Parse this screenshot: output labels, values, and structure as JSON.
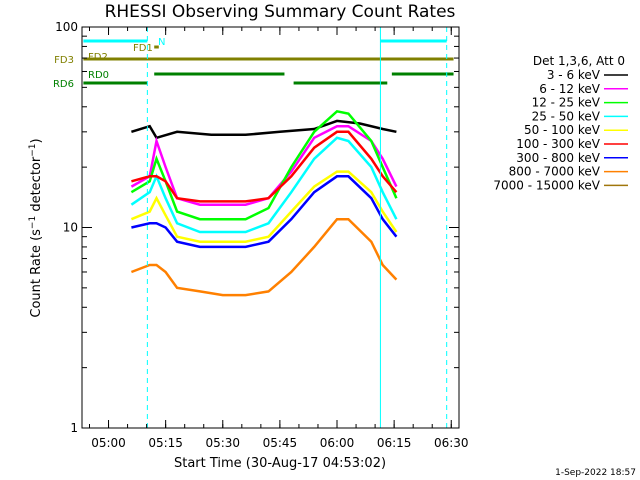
{
  "chart_data": {
    "type": "line",
    "title": "RHESSI Observing Summary Count Rates",
    "xlabel": "Start Time (30-Aug-17 04:53:02)",
    "ylabel_main": "Count Rate (s",
    "ylabel_sup": "−1",
    "ylabel_mid": " detector",
    "ylabel_end": ")",
    "x_range_min": [
      4.8839,
      6.5339
    ],
    "ylim": [
      1,
      100
    ],
    "y_scale": "log",
    "x_ticks": [
      {
        "t": 5.0,
        "label": "05:00"
      },
      {
        "t": 5.25,
        "label": "05:15"
      },
      {
        "t": 5.5,
        "label": "05:30"
      },
      {
        "t": 5.75,
        "label": "05:45"
      },
      {
        "t": 6.0,
        "label": "06:00"
      },
      {
        "t": 6.25,
        "label": "06:15"
      },
      {
        "t": 6.5,
        "label": "06:30"
      }
    ],
    "y_ticks": [
      {
        "v": 1,
        "label": "1"
      },
      {
        "v": 10,
        "label": "10"
      },
      {
        "v": 100,
        "label": "100"
      }
    ],
    "legend_header": "Det 1,3,6, Att 0",
    "legend_placement": "right",
    "series": [
      {
        "name": "3 - 6 keV",
        "color": "#000000",
        "points": [
          [
            5.1,
            30
          ],
          [
            5.18,
            32
          ],
          [
            5.21,
            28
          ],
          [
            5.3,
            30
          ],
          [
            5.45,
            29
          ],
          [
            5.6,
            29
          ],
          [
            5.75,
            30
          ],
          [
            5.9,
            31
          ],
          [
            6.0,
            34
          ],
          [
            6.1,
            33
          ],
          [
            6.2,
            31
          ],
          [
            6.26,
            30
          ]
        ]
      },
      {
        "name": "6 - 12 keV",
        "color": "#ff00ff",
        "points": [
          [
            5.1,
            16
          ],
          [
            5.18,
            18
          ],
          [
            5.21,
            27
          ],
          [
            5.25,
            20
          ],
          [
            5.3,
            14
          ],
          [
            5.4,
            13
          ],
          [
            5.5,
            13
          ],
          [
            5.6,
            13
          ],
          [
            5.7,
            14
          ],
          [
            5.8,
            19
          ],
          [
            5.9,
            28
          ],
          [
            6.0,
            32
          ],
          [
            6.05,
            32
          ],
          [
            6.15,
            27
          ],
          [
            6.2,
            22
          ],
          [
            6.26,
            16
          ]
        ]
      },
      {
        "name": "12 - 25 keV",
        "color": "#00ff00",
        "points": [
          [
            5.1,
            15
          ],
          [
            5.18,
            17
          ],
          [
            5.21,
            22
          ],
          [
            5.25,
            17
          ],
          [
            5.3,
            12
          ],
          [
            5.4,
            11
          ],
          [
            5.5,
            11
          ],
          [
            5.6,
            11
          ],
          [
            5.7,
            12.5
          ],
          [
            5.8,
            20
          ],
          [
            5.9,
            30
          ],
          [
            6.0,
            38
          ],
          [
            6.05,
            37
          ],
          [
            6.15,
            27
          ],
          [
            6.2,
            20
          ],
          [
            6.26,
            14
          ]
        ]
      },
      {
        "name": "25 - 50 keV",
        "color": "#00ffff",
        "points": [
          [
            5.1,
            13
          ],
          [
            5.18,
            15
          ],
          [
            5.21,
            18
          ],
          [
            5.25,
            14
          ],
          [
            5.3,
            10.5
          ],
          [
            5.4,
            9.5
          ],
          [
            5.5,
            9.5
          ],
          [
            5.6,
            9.5
          ],
          [
            5.7,
            10.5
          ],
          [
            5.8,
            15
          ],
          [
            5.9,
            22
          ],
          [
            6.0,
            28
          ],
          [
            6.05,
            27
          ],
          [
            6.15,
            20
          ],
          [
            6.2,
            15
          ],
          [
            6.26,
            11
          ]
        ]
      },
      {
        "name": "50 - 100 keV",
        "color": "#ffff00",
        "points": [
          [
            5.1,
            11
          ],
          [
            5.18,
            12
          ],
          [
            5.21,
            14
          ],
          [
            5.25,
            11.5
          ],
          [
            5.3,
            9
          ],
          [
            5.4,
            8.5
          ],
          [
            5.5,
            8.5
          ],
          [
            5.6,
            8.5
          ],
          [
            5.7,
            9
          ],
          [
            5.8,
            12
          ],
          [
            5.9,
            16
          ],
          [
            6.0,
            19
          ],
          [
            6.05,
            19
          ],
          [
            6.15,
            15
          ],
          [
            6.2,
            12
          ],
          [
            6.26,
            9.5
          ]
        ]
      },
      {
        "name": "100 - 300 keV",
        "color": "#ff0000",
        "points": [
          [
            5.1,
            17
          ],
          [
            5.18,
            18
          ],
          [
            5.21,
            18
          ],
          [
            5.25,
            17
          ],
          [
            5.3,
            14
          ],
          [
            5.4,
            13.5
          ],
          [
            5.5,
            13.5
          ],
          [
            5.6,
            13.5
          ],
          [
            5.7,
            14
          ],
          [
            5.8,
            18
          ],
          [
            5.9,
            25
          ],
          [
            6.0,
            30
          ],
          [
            6.05,
            30
          ],
          [
            6.15,
            22
          ],
          [
            6.2,
            18
          ],
          [
            6.26,
            15
          ]
        ]
      },
      {
        "name": "300 - 800 keV",
        "color": "#0000ff",
        "points": [
          [
            5.1,
            10
          ],
          [
            5.18,
            10.5
          ],
          [
            5.21,
            10.5
          ],
          [
            5.25,
            10
          ],
          [
            5.3,
            8.5
          ],
          [
            5.4,
            8
          ],
          [
            5.5,
            8
          ],
          [
            5.6,
            8
          ],
          [
            5.7,
            8.5
          ],
          [
            5.8,
            11
          ],
          [
            5.9,
            15
          ],
          [
            6.0,
            18
          ],
          [
            6.05,
            18
          ],
          [
            6.15,
            14
          ],
          [
            6.2,
            11
          ],
          [
            6.26,
            9
          ]
        ]
      },
      {
        "name": "800 - 7000 keV",
        "color": "#ff8000",
        "points": [
          [
            5.1,
            6
          ],
          [
            5.18,
            6.5
          ],
          [
            5.21,
            6.5
          ],
          [
            5.25,
            6
          ],
          [
            5.3,
            5
          ],
          [
            5.4,
            4.8
          ],
          [
            5.5,
            4.6
          ],
          [
            5.6,
            4.6
          ],
          [
            5.7,
            4.8
          ],
          [
            5.8,
            6
          ],
          [
            5.9,
            8
          ],
          [
            6.0,
            11
          ],
          [
            6.05,
            11
          ],
          [
            6.15,
            8.5
          ],
          [
            6.2,
            6.5
          ],
          [
            6.26,
            5.5
          ]
        ]
      },
      {
        "name": "7000 - 15000 keV",
        "color": "#a0760c",
        "points": []
      }
    ],
    "observing_flags": [
      {
        "label": "RD6",
        "color": "#008000",
        "segments": [
          [
            4.89,
            5.17
          ],
          [
            5.81,
            6.22
          ]
        ]
      },
      {
        "label": "RD0",
        "color": "#008000",
        "segments": [
          [
            5.2,
            5.77
          ],
          [
            6.24,
            6.51
          ]
        ]
      },
      {
        "label": "FD3",
        "color": "#808000",
        "segments": [
          [
            4.89,
            6.51
          ]
        ]
      },
      {
        "label": "FD2",
        "color": "#808000",
        "segments": []
      },
      {
        "label": "FD1",
        "color": "#808000",
        "segments": [
          [
            5.2,
            5.22
          ]
        ]
      },
      {
        "label": "N",
        "color": "#00ffff",
        "segments": []
      },
      {
        "label": "SAA/Night",
        "color": "#00ffff",
        "segments": [
          [
            4.89,
            5.17
          ],
          [
            6.19,
            6.48
          ]
        ]
      }
    ],
    "vertical_markers": [
      {
        "t": 5.17,
        "color": "#00ffff",
        "style": "dashed"
      },
      {
        "t": 6.19,
        "color": "#00ffff",
        "style": "solid"
      },
      {
        "t": 6.48,
        "color": "#00ffff",
        "style": "dashed"
      }
    ]
  },
  "footer": {
    "date_stamp": "1-Sep-2022 18:57"
  }
}
